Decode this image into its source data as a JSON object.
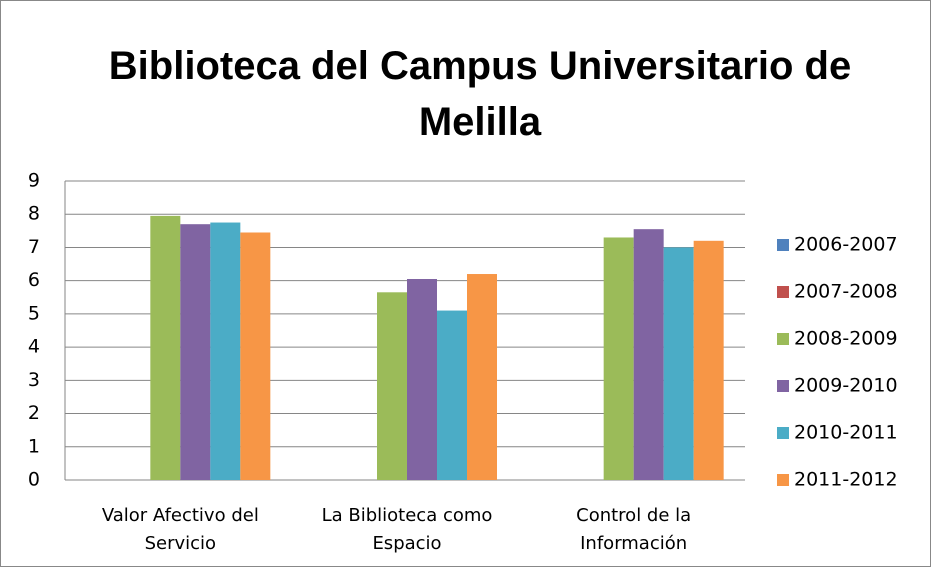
{
  "chart_data": {
    "type": "bar",
    "title": "Biblioteca del Campus Universitario de Melilla",
    "categories": [
      "Valor Afectivo del Servicio",
      "La Biblioteca como Espacio",
      "Control de la Información"
    ],
    "series": [
      {
        "name": "2006-2007",
        "color": "#4f81bd",
        "values": [
          null,
          null,
          null
        ]
      },
      {
        "name": "2007-2008",
        "color": "#c0504d",
        "values": [
          null,
          null,
          null
        ]
      },
      {
        "name": "2008-2009",
        "color": "#9bbb59",
        "values": [
          7.95,
          5.65,
          7.3
        ]
      },
      {
        "name": "2009-2010",
        "color": "#8064a2",
        "values": [
          7.7,
          6.05,
          7.55
        ]
      },
      {
        "name": "2010-2011",
        "color": "#4bacc6",
        "values": [
          7.75,
          5.1,
          7.0
        ]
      },
      {
        "name": "2011-2012",
        "color": "#f79646",
        "values": [
          7.45,
          6.2,
          7.2
        ]
      }
    ],
    "ylim": [
      0,
      9
    ],
    "yticks": [
      0,
      1,
      2,
      3,
      4,
      5,
      6,
      7,
      8,
      9
    ],
    "grid": true,
    "legend": "right"
  }
}
